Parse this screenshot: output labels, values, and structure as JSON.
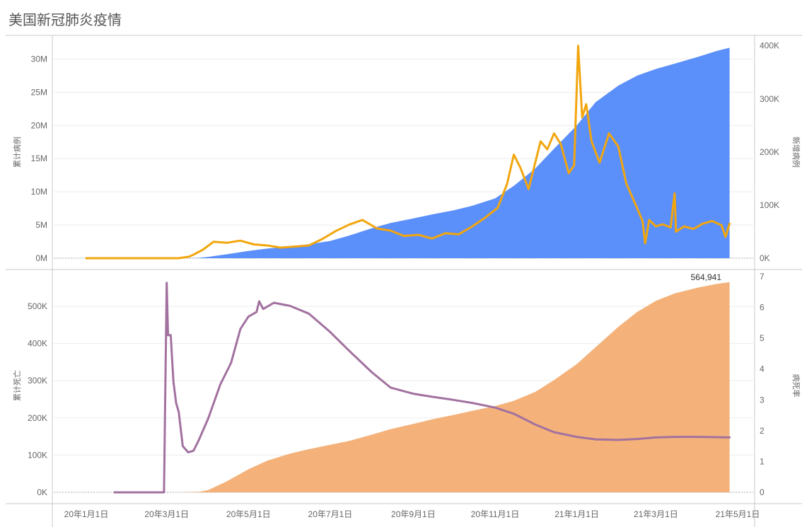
{
  "title": "美国新冠肺炎疫情",
  "colors": {
    "cumulative_cases": "#5b8ff9",
    "new_cases": "#f2a60e",
    "cumulative_deaths": "#f4b27a",
    "fatality_rate": "#a2719f"
  },
  "chart_data": [
    {
      "type": "area",
      "ylabel": "累计病例",
      "y2label": "新增病例",
      "ylim": [
        0,
        32500000
      ],
      "y2lim": [
        0,
        406250
      ],
      "y_ticks": [
        "0M",
        "5M",
        "10M",
        "15M",
        "20M",
        "25M",
        "30M"
      ],
      "y2_ticks": [
        "0K",
        "100K",
        "200K",
        "300K",
        "400K"
      ],
      "series": [
        {
          "key": "cumulative_cases",
          "axis": "left",
          "style": "area",
          "points": [
            [
              "2020-01-01",
              0
            ],
            [
              "2020-03-15",
              0
            ],
            [
              "2020-03-25",
              50000
            ],
            [
              "2020-04-01",
              200000
            ],
            [
              "2020-04-15",
              600000
            ],
            [
              "2020-05-01",
              1100000
            ],
            [
              "2020-05-15",
              1450000
            ],
            [
              "2020-06-01",
              1800000
            ],
            [
              "2020-06-15",
              2100000
            ],
            [
              "2020-07-01",
              2600000
            ],
            [
              "2020-07-15",
              3400000
            ],
            [
              "2020-08-01",
              4500000
            ],
            [
              "2020-08-15",
              5300000
            ],
            [
              "2020-09-01",
              6000000
            ],
            [
              "2020-09-15",
              6600000
            ],
            [
              "2020-10-01",
              7200000
            ],
            [
              "2020-10-15",
              7900000
            ],
            [
              "2020-11-01",
              9000000
            ],
            [
              "2020-11-15",
              10900000
            ],
            [
              "2020-12-01",
              13500000
            ],
            [
              "2020-12-15",
              16500000
            ],
            [
              "2021-01-01",
              20000000
            ],
            [
              "2021-01-15",
              23500000
            ],
            [
              "2021-02-01",
              26000000
            ],
            [
              "2021-02-15",
              27500000
            ],
            [
              "2021-03-01",
              28500000
            ],
            [
              "2021-03-15",
              29300000
            ],
            [
              "2021-04-01",
              30300000
            ],
            [
              "2021-04-15",
              31200000
            ],
            [
              "2021-04-25",
              31700000
            ]
          ]
        },
        {
          "key": "new_cases",
          "axis": "right",
          "style": "line",
          "points": [
            [
              "2020-01-01",
              0
            ],
            [
              "2020-03-01",
              0
            ],
            [
              "2020-03-10",
              0
            ],
            [
              "2020-03-18",
              3000
            ],
            [
              "2020-03-22",
              8000
            ],
            [
              "2020-03-28",
              16000
            ],
            [
              "2020-04-05",
              31000
            ],
            [
              "2020-04-15",
              29000
            ],
            [
              "2020-04-25",
              33000
            ],
            [
              "2020-05-05",
              26000
            ],
            [
              "2020-05-15",
              24000
            ],
            [
              "2020-05-25",
              20000
            ],
            [
              "2020-06-05",
              22000
            ],
            [
              "2020-06-15",
              24000
            ],
            [
              "2020-06-25",
              36000
            ],
            [
              "2020-07-05",
              51000
            ],
            [
              "2020-07-15",
              63000
            ],
            [
              "2020-07-25",
              72000
            ],
            [
              "2020-08-05",
              56000
            ],
            [
              "2020-08-15",
              52000
            ],
            [
              "2020-08-25",
              42000
            ],
            [
              "2020-09-05",
              44000
            ],
            [
              "2020-09-15",
              37000
            ],
            [
              "2020-09-25",
              47000
            ],
            [
              "2020-10-05",
              45000
            ],
            [
              "2020-10-15",
              60000
            ],
            [
              "2020-10-25",
              77000
            ],
            [
              "2020-11-03",
              95000
            ],
            [
              "2020-11-10",
              140000
            ],
            [
              "2020-11-15",
              195000
            ],
            [
              "2020-11-20",
              170000
            ],
            [
              "2020-11-26",
              130000
            ],
            [
              "2020-12-01",
              180000
            ],
            [
              "2020-12-05",
              220000
            ],
            [
              "2020-12-10",
              205000
            ],
            [
              "2020-12-15",
              235000
            ],
            [
              "2020-12-20",
              215000
            ],
            [
              "2020-12-26",
              160000
            ],
            [
              "2020-12-30",
              175000
            ],
            [
              "2021-01-02",
              400000
            ],
            [
              "2021-01-05",
              265000
            ],
            [
              "2021-01-08",
              290000
            ],
            [
              "2021-01-12",
              220000
            ],
            [
              "2021-01-18",
              180000
            ],
            [
              "2021-01-25",
              235000
            ],
            [
              "2021-02-01",
              210000
            ],
            [
              "2021-02-07",
              140000
            ],
            [
              "2021-02-14",
              100000
            ],
            [
              "2021-02-19",
              70000
            ],
            [
              "2021-02-21",
              28000
            ],
            [
              "2021-02-24",
              72000
            ],
            [
              "2021-03-01",
              60000
            ],
            [
              "2021-03-06",
              64000
            ],
            [
              "2021-03-12",
              58000
            ],
            [
              "2021-03-15",
              122000
            ],
            [
              "2021-03-16",
              50000
            ],
            [
              "2021-03-22",
              60000
            ],
            [
              "2021-03-29",
              55000
            ],
            [
              "2021-04-05",
              65000
            ],
            [
              "2021-04-12",
              70000
            ],
            [
              "2021-04-19",
              62000
            ],
            [
              "2021-04-22",
              40000
            ],
            [
              "2021-04-25",
              65000
            ]
          ]
        }
      ]
    },
    {
      "type": "area",
      "ylabel": "累计死亡",
      "y2label": "病死率",
      "ylim": [
        0,
        580000
      ],
      "y2lim": [
        0,
        7
      ],
      "y_ticks": [
        "0K",
        "100K",
        "200K",
        "300K",
        "400K",
        "500K"
      ],
      "y2_ticks": [
        "0",
        "1",
        "2",
        "3",
        "4",
        "5",
        "6",
        "7"
      ],
      "x_ticks": [
        "20年1月1日",
        "20年3月1日",
        "20年5月1日",
        "20年7月1日",
        "20年9月1日",
        "20年11月1日",
        "21年1月1日",
        "21年3月1日",
        "21年5月1日"
      ],
      "annotation": "564,941",
      "series": [
        {
          "key": "cumulative_deaths",
          "axis": "left",
          "style": "area",
          "points": [
            [
              "2020-01-01",
              0
            ],
            [
              "2020-03-10",
              0
            ],
            [
              "2020-03-25",
              1500
            ],
            [
              "2020-04-01",
              6000
            ],
            [
              "2020-04-15",
              30000
            ],
            [
              "2020-05-01",
              62000
            ],
            [
              "2020-05-15",
              85000
            ],
            [
              "2020-06-01",
              104000
            ],
            [
              "2020-06-15",
              116000
            ],
            [
              "2020-07-01",
              128000
            ],
            [
              "2020-07-15",
              138000
            ],
            [
              "2020-08-01",
              155000
            ],
            [
              "2020-08-15",
              170000
            ],
            [
              "2020-09-01",
              184000
            ],
            [
              "2020-09-15",
              196000
            ],
            [
              "2020-10-01",
              208000
            ],
            [
              "2020-10-15",
              219000
            ],
            [
              "2020-11-01",
              232000
            ],
            [
              "2020-11-15",
              246000
            ],
            [
              "2020-12-01",
              270000
            ],
            [
              "2020-12-15",
              302000
            ],
            [
              "2021-01-01",
              345000
            ],
            [
              "2021-01-15",
              390000
            ],
            [
              "2021-02-01",
              445000
            ],
            [
              "2021-02-15",
              485000
            ],
            [
              "2021-03-01",
              515000
            ],
            [
              "2021-03-15",
              535000
            ],
            [
              "2021-04-01",
              550000
            ],
            [
              "2021-04-15",
              560000
            ],
            [
              "2021-04-25",
              564941
            ]
          ]
        },
        {
          "key": "fatality_rate",
          "axis": "right",
          "style": "line",
          "points": [
            [
              "2020-01-22",
              0
            ],
            [
              "2020-02-28",
              0
            ],
            [
              "2020-03-01",
              6.8
            ],
            [
              "2020-03-02",
              5.1
            ],
            [
              "2020-03-04",
              5.1
            ],
            [
              "2020-03-06",
              3.6
            ],
            [
              "2020-03-08",
              2.9
            ],
            [
              "2020-03-10",
              2.6
            ],
            [
              "2020-03-13",
              1.5
            ],
            [
              "2020-03-17",
              1.3
            ],
            [
              "2020-03-21",
              1.35
            ],
            [
              "2020-03-25",
              1.7
            ],
            [
              "2020-04-01",
              2.4
            ],
            [
              "2020-04-10",
              3.5
            ],
            [
              "2020-04-18",
              4.2
            ],
            [
              "2020-04-25",
              5.3
            ],
            [
              "2020-05-01",
              5.7
            ],
            [
              "2020-05-07",
              5.85
            ],
            [
              "2020-05-09",
              6.2
            ],
            [
              "2020-05-12",
              5.95
            ],
            [
              "2020-05-20",
              6.15
            ],
            [
              "2020-06-01",
              6.05
            ],
            [
              "2020-06-15",
              5.8
            ],
            [
              "2020-07-01",
              5.2
            ],
            [
              "2020-07-15",
              4.6
            ],
            [
              "2020-08-01",
              3.9
            ],
            [
              "2020-08-15",
              3.4
            ],
            [
              "2020-09-01",
              3.2
            ],
            [
              "2020-09-15",
              3.1
            ],
            [
              "2020-10-01",
              3.0
            ],
            [
              "2020-10-15",
              2.9
            ],
            [
              "2020-11-01",
              2.75
            ],
            [
              "2020-11-15",
              2.55
            ],
            [
              "2020-12-01",
              2.2
            ],
            [
              "2020-12-15",
              1.95
            ],
            [
              "2021-01-01",
              1.8
            ],
            [
              "2021-01-15",
              1.72
            ],
            [
              "2021-02-01",
              1.7
            ],
            [
              "2021-02-15",
              1.73
            ],
            [
              "2021-03-01",
              1.78
            ],
            [
              "2021-03-15",
              1.8
            ],
            [
              "2021-04-01",
              1.8
            ],
            [
              "2021-04-15",
              1.79
            ],
            [
              "2021-04-25",
              1.78
            ]
          ]
        }
      ]
    }
  ]
}
